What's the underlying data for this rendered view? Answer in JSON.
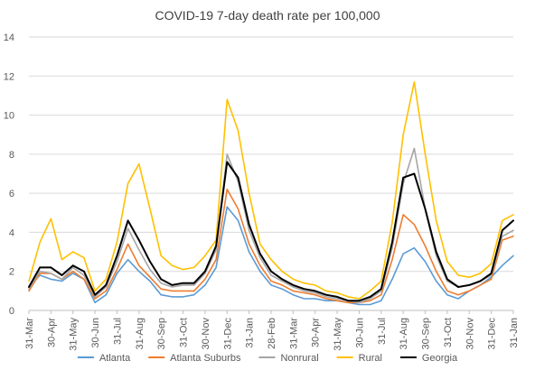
{
  "chart_data": {
    "type": "line",
    "title": "COVID-19 7-day death rate per 100,000",
    "xlabel": "",
    "ylabel": "",
    "ylim": [
      0,
      14
    ],
    "yticks": [
      0,
      2,
      4,
      6,
      8,
      10,
      12,
      14
    ],
    "grid": "horizontal",
    "legend_position": "bottom",
    "x_tick_labels": [
      "31-Mar",
      "30-Apr",
      "31-May",
      "30-Jun",
      "31-Jul",
      "31-Aug",
      "30-Sep",
      "31-Oct",
      "30-Nov",
      "31-Dec",
      "31-Jan",
      "28-Feb",
      "31-Mar",
      "30-Apr",
      "31-May",
      "30-Jun",
      "31-Jul",
      "31-Aug",
      "30-Sep",
      "31-Oct",
      "30-Nov",
      "31-Dec",
      "31-Jan"
    ],
    "x_tick_month_index": [
      0,
      1,
      2,
      3,
      4,
      5,
      6,
      7,
      8,
      9,
      10,
      11,
      12,
      13,
      14,
      15,
      16,
      17,
      18,
      19,
      20,
      21,
      22
    ],
    "x_month_index_max": 22,
    "series": [
      {
        "name": "Atlanta",
        "color": "#5B9BD5",
        "x": [
          0,
          0.5,
          1,
          1.5,
          2,
          2.5,
          3,
          3.5,
          4,
          4.5,
          5,
          5.5,
          6,
          6.5,
          7,
          7.5,
          8,
          8.5,
          9,
          9.5,
          10,
          10.5,
          11,
          11.5,
          12,
          12.5,
          13,
          13.5,
          14,
          14.5,
          15,
          15.5,
          16,
          16.5,
          17,
          17.5,
          18,
          18.5,
          19,
          19.5,
          20,
          20.5,
          21,
          21.5,
          22
        ],
        "y": [
          1.2,
          1.8,
          1.6,
          1.5,
          1.9,
          1.6,
          0.4,
          0.8,
          1.9,
          2.6,
          2.0,
          1.5,
          0.8,
          0.7,
          0.7,
          0.8,
          1.3,
          2.2,
          5.3,
          4.6,
          3.0,
          2.0,
          1.3,
          1.1,
          0.8,
          0.6,
          0.6,
          0.5,
          0.5,
          0.4,
          0.3,
          0.3,
          0.5,
          1.6,
          2.9,
          3.2,
          2.5,
          1.5,
          0.8,
          0.6,
          1.0,
          1.3,
          1.7,
          2.3,
          2.8
        ]
      },
      {
        "name": "Atlanta Suburbs",
        "color": "#ED7D31",
        "x": [
          0,
          0.5,
          1,
          1.5,
          2,
          2.5,
          3,
          3.5,
          4,
          4.5,
          5,
          5.5,
          6,
          6.5,
          7,
          7.5,
          8,
          8.5,
          9,
          9.5,
          10,
          10.5,
          11,
          11.5,
          12,
          12.5,
          13,
          13.5,
          14,
          14.5,
          15,
          15.5,
          16,
          16.5,
          17,
          17.5,
          18,
          18.5,
          19,
          19.5,
          20,
          20.5,
          21,
          21.5,
          22
        ],
        "y": [
          1.0,
          1.9,
          1.9,
          1.6,
          2.0,
          1.6,
          0.6,
          1.0,
          2.1,
          3.4,
          2.3,
          1.7,
          1.1,
          1.0,
          1.0,
          1.0,
          1.6,
          2.6,
          6.2,
          5.2,
          3.4,
          2.3,
          1.5,
          1.3,
          1.0,
          0.9,
          0.8,
          0.6,
          0.5,
          0.4,
          0.4,
          0.5,
          0.8,
          2.6,
          4.9,
          4.4,
          3.3,
          2.0,
          1.0,
          0.8,
          1.0,
          1.3,
          1.6,
          3.6,
          3.8
        ]
      },
      {
        "name": "Nonrural",
        "color": "#A5A5A5",
        "x": [
          0,
          0.5,
          1,
          1.5,
          2,
          2.5,
          3,
          3.5,
          4,
          4.5,
          5,
          5.5,
          6,
          6.5,
          7,
          7.5,
          8,
          8.5,
          9,
          9.5,
          10,
          10.5,
          11,
          11.5,
          12,
          12.5,
          13,
          13.5,
          14,
          14.5,
          15,
          15.5,
          16,
          16.5,
          17,
          17.5,
          18,
          18.5,
          19,
          19.5,
          20,
          20.5,
          21,
          21.5,
          22
        ],
        "y": [
          1.1,
          2.0,
          1.9,
          1.6,
          2.2,
          1.8,
          0.7,
          1.2,
          2.5,
          4.2,
          3.1,
          2.1,
          1.4,
          1.2,
          1.3,
          1.3,
          1.9,
          3.1,
          8.0,
          6.6,
          4.1,
          2.7,
          1.8,
          1.5,
          1.2,
          1.0,
          0.9,
          0.7,
          0.6,
          0.5,
          0.4,
          0.6,
          1.0,
          3.2,
          6.5,
          8.3,
          5.2,
          2.8,
          1.5,
          1.2,
          1.3,
          1.5,
          1.8,
          3.8,
          4.1
        ]
      },
      {
        "name": "Rural",
        "color": "#FFC000",
        "x": [
          0,
          0.5,
          1,
          1.5,
          2,
          2.5,
          3,
          3.5,
          4,
          4.5,
          5,
          5.5,
          6,
          6.5,
          7,
          7.5,
          8,
          8.5,
          9,
          9.5,
          10,
          10.5,
          11,
          11.5,
          12,
          12.5,
          13,
          13.5,
          14,
          14.5,
          15,
          15.5,
          16,
          16.5,
          17,
          17.5,
          18,
          18.5,
          19,
          19.5,
          20,
          20.5,
          21,
          21.5,
          22
        ],
        "y": [
          1.5,
          3.5,
          4.7,
          2.6,
          3.0,
          2.7,
          1.0,
          1.6,
          3.5,
          6.5,
          7.5,
          5.2,
          2.8,
          2.3,
          2.1,
          2.2,
          2.8,
          3.6,
          10.8,
          9.2,
          6.0,
          3.4,
          2.6,
          2.0,
          1.6,
          1.4,
          1.3,
          1.0,
          0.9,
          0.7,
          0.6,
          1.0,
          1.5,
          4.5,
          9.0,
          11.7,
          8.0,
          4.6,
          2.5,
          1.8,
          1.7,
          1.9,
          2.4,
          4.6,
          4.9
        ]
      },
      {
        "name": "Georgia",
        "color": "#000000",
        "x": [
          0,
          0.5,
          1,
          1.5,
          2,
          2.5,
          3,
          3.5,
          4,
          4.5,
          5,
          5.5,
          6,
          6.5,
          7,
          7.5,
          8,
          8.5,
          9,
          9.5,
          10,
          10.5,
          11,
          11.5,
          12,
          12.5,
          13,
          13.5,
          14,
          14.5,
          15,
          15.5,
          16,
          16.5,
          17,
          17.5,
          18,
          18.5,
          19,
          19.5,
          20,
          20.5,
          21,
          21.5,
          22
        ],
        "y": [
          1.2,
          2.2,
          2.2,
          1.8,
          2.3,
          2.0,
          0.8,
          1.3,
          2.8,
          4.6,
          3.6,
          2.5,
          1.6,
          1.3,
          1.4,
          1.4,
          2.0,
          3.3,
          7.6,
          6.8,
          4.4,
          2.9,
          2.0,
          1.6,
          1.3,
          1.1,
          1.0,
          0.8,
          0.7,
          0.5,
          0.5,
          0.7,
          1.1,
          3.5,
          6.8,
          7.0,
          5.2,
          3.0,
          1.6,
          1.2,
          1.3,
          1.5,
          1.9,
          4.1,
          4.6
        ]
      }
    ]
  }
}
